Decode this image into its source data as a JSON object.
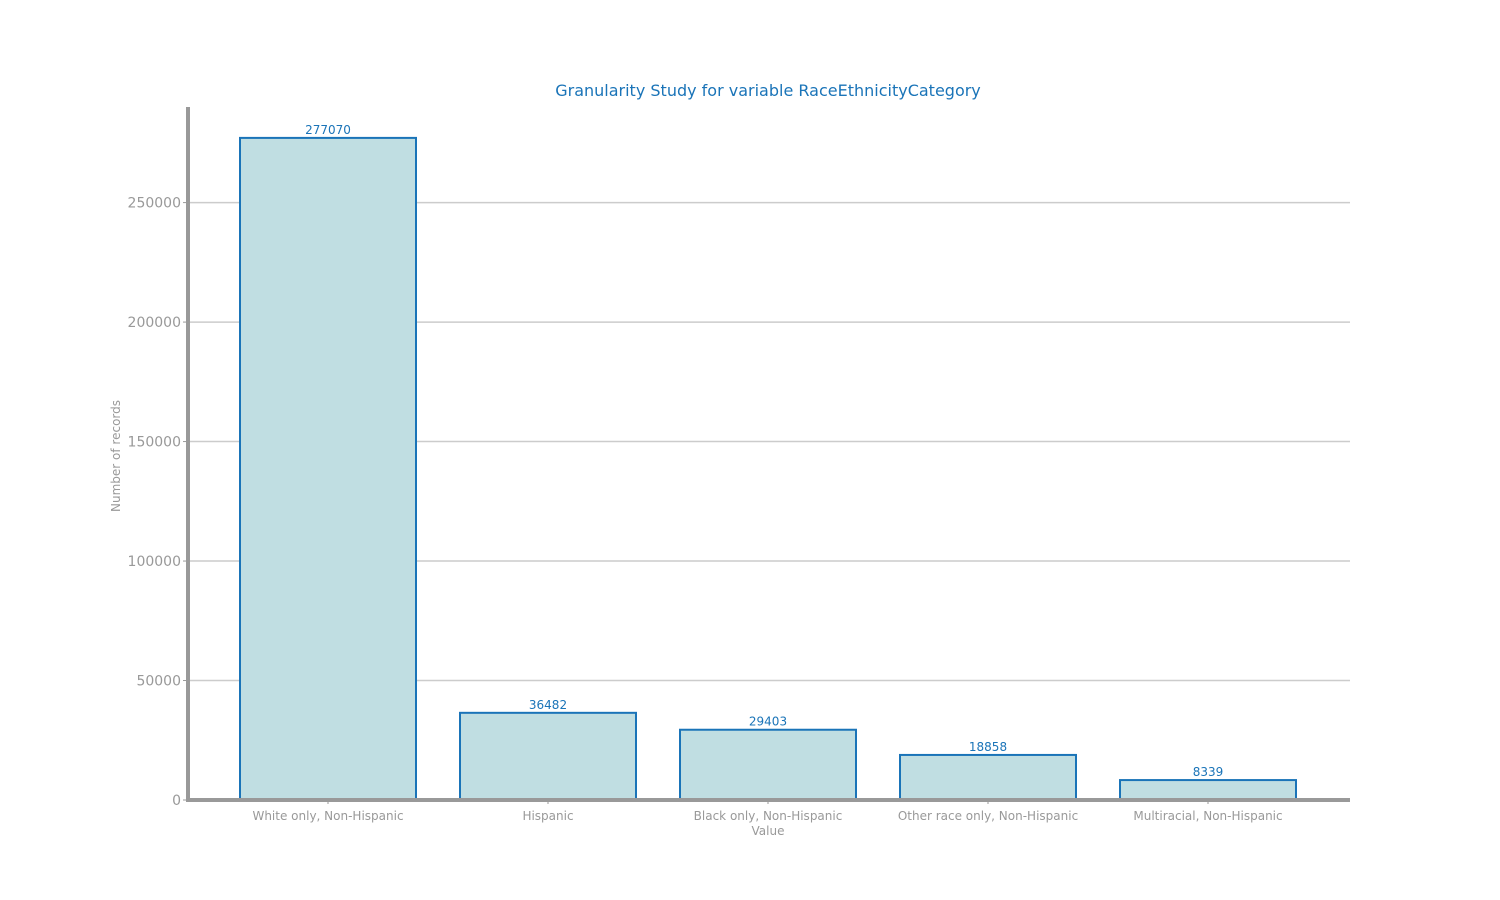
{
  "chart_data": {
    "type": "bar",
    "title": "Granularity Study for variable RaceEthnicityCategory",
    "xlabel": "Value",
    "ylabel": "Number of records",
    "categories": [
      "White only, Non-Hispanic",
      "Hispanic",
      "Black only, Non-Hispanic",
      "Other race only, Non-Hispanic",
      "Multiracial, Non-Hispanic"
    ],
    "values": [
      277070,
      36482,
      29403,
      18858,
      8339
    ],
    "data_labels": [
      "277070",
      "36482",
      "29403",
      "18858",
      "8339"
    ],
    "ylim": [
      0,
      290000
    ],
    "yticks": [
      0,
      50000,
      100000,
      150000,
      200000,
      250000
    ],
    "ytick_labels": [
      "0",
      "50000",
      "100000",
      "150000",
      "200000",
      "250000"
    ],
    "grid": "y",
    "legend": "none"
  },
  "colors": {
    "bar_fill": "#c0dee2",
    "bar_stroke": "#1a74b8",
    "title": "#1a74b8",
    "data_label": "#1a74b8",
    "axis": "#999999",
    "grid": "#cccccc",
    "tick_text": "#999999"
  }
}
